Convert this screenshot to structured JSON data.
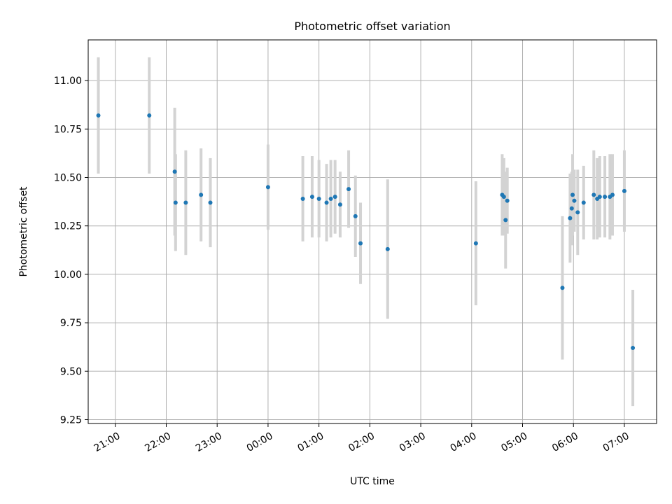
{
  "chart_data": {
    "type": "scatter",
    "title": "Photometric offset variation",
    "xlabel": "UTC time",
    "ylabel": "Photometric offset",
    "grid": true,
    "legend": "none",
    "x_axis": {
      "kind": "time",
      "ticks": [
        "21:00",
        "22:00",
        "23:00",
        "00:00",
        "01:00",
        "02:00",
        "03:00",
        "04:00",
        "05:00",
        "06:00",
        "07:00"
      ],
      "xlim": [
        "20:28",
        "07:38"
      ]
    },
    "y_axis": {
      "ticks": [
        "9.25",
        "9.50",
        "9.75",
        "10.00",
        "10.25",
        "10.50",
        "10.75",
        "11.00"
      ],
      "ylim": [
        9.23,
        11.21
      ]
    },
    "colors": {
      "point": "#1f77b4",
      "errorbar": "#d3d3d3",
      "grid": "#b0b0b0"
    },
    "series": [
      {
        "points": [
          {
            "x": "20:40",
            "y": 10.82,
            "err": 0.3
          },
          {
            "x": "21:40",
            "y": 10.82,
            "err": 0.3
          },
          {
            "x": "22:10",
            "y": 10.53,
            "err": 0.33
          },
          {
            "x": "22:11",
            "y": 10.37,
            "err": 0.25
          },
          {
            "x": "22:23",
            "y": 10.37,
            "err": 0.27
          },
          {
            "x": "22:41",
            "y": 10.41,
            "err": 0.24
          },
          {
            "x": "22:52",
            "y": 10.37,
            "err": 0.23
          },
          {
            "x": "00:00",
            "y": 10.45,
            "err": 0.22
          },
          {
            "x": "00:41",
            "y": 10.39,
            "err": 0.22
          },
          {
            "x": "00:52",
            "y": 10.4,
            "err": 0.21
          },
          {
            "x": "01:00",
            "y": 10.39,
            "err": 0.2
          },
          {
            "x": "01:09",
            "y": 10.37,
            "err": 0.2
          },
          {
            "x": "01:14",
            "y": 10.39,
            "err": 0.2
          },
          {
            "x": "01:19",
            "y": 10.4,
            "err": 0.19
          },
          {
            "x": "01:25",
            "y": 10.36,
            "err": 0.17
          },
          {
            "x": "01:35",
            "y": 10.44,
            "err": 0.2
          },
          {
            "x": "01:43",
            "y": 10.3,
            "err": 0.21
          },
          {
            "x": "01:49",
            "y": 10.16,
            "err": 0.21
          },
          {
            "x": "02:21",
            "y": 10.13,
            "err": 0.36
          },
          {
            "x": "04:05",
            "y": 10.16,
            "err": 0.32
          },
          {
            "x": "04:36",
            "y": 10.41,
            "err": 0.21
          },
          {
            "x": "04:38",
            "y": 10.4,
            "err": 0.2
          },
          {
            "x": "04:40",
            "y": 10.28,
            "err": 0.25
          },
          {
            "x": "04:42",
            "y": 10.38,
            "err": 0.17
          },
          {
            "x": "05:47",
            "y": 9.93,
            "err": 0.37
          },
          {
            "x": "05:56",
            "y": 10.29,
            "err": 0.23
          },
          {
            "x": "05:58",
            "y": 10.34,
            "err": 0.19
          },
          {
            "x": "05:59",
            "y": 10.41,
            "err": 0.21
          },
          {
            "x": "06:01",
            "y": 10.38,
            "err": 0.16
          },
          {
            "x": "06:05",
            "y": 10.32,
            "err": 0.22
          },
          {
            "x": "06:12",
            "y": 10.37,
            "err": 0.19
          },
          {
            "x": "06:24",
            "y": 10.41,
            "err": 0.23
          },
          {
            "x": "06:28",
            "y": 10.39,
            "err": 0.21
          },
          {
            "x": "06:31",
            "y": 10.4,
            "err": 0.21
          },
          {
            "x": "06:37",
            "y": 10.4,
            "err": 0.21
          },
          {
            "x": "06:43",
            "y": 10.4,
            "err": 0.22
          },
          {
            "x": "06:46",
            "y": 10.41,
            "err": 0.21
          },
          {
            "x": "07:00",
            "y": 10.43,
            "err": 0.21
          },
          {
            "x": "07:10",
            "y": 9.62,
            "err": 0.3
          }
        ]
      }
    ]
  }
}
